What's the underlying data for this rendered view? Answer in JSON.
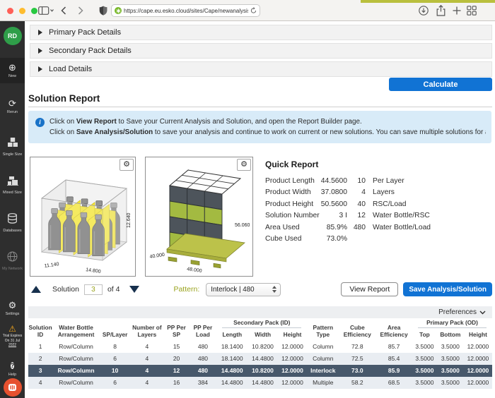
{
  "browser": {
    "url": "https://cape.eu.esko.cloud/sites/Cape/newanalysis"
  },
  "sidebar": {
    "avatar": "RD",
    "items": [
      {
        "label": "New",
        "glyph": "⊕"
      },
      {
        "label": "Rerun",
        "glyph": "⟳"
      },
      {
        "label": "Single Size"
      },
      {
        "label": "Mixed Size"
      },
      {
        "label": "Databases"
      },
      {
        "label": "My Network"
      }
    ],
    "settings": {
      "label": "Settings",
      "glyph": "⚙"
    },
    "trial": {
      "glyph": "⚠",
      "line1": "Trial Expires",
      "line2": "On 31 Jul",
      "line3": "2022"
    },
    "help": {
      "label": "Help",
      "glyph": "?"
    }
  },
  "accordions": [
    {
      "label": "Primary Pack Details"
    },
    {
      "label": "Secondary Pack Details"
    },
    {
      "label": "Load Details"
    }
  ],
  "calculate_label": "Calculate",
  "section_title": "Solution Report",
  "info_box": {
    "line1_prefix": "Click on ",
    "line1_bold": "View Report",
    "line1_suffix": " to Save your Current Analysis and Solution, and open the Report Builder page.",
    "line2_prefix": "Click on ",
    "line2_bold": "Save Analysis/Solution",
    "line2_suffix": " to save your analysis and continue to work on current or new solutions. You can save multiple solutions for any analysis."
  },
  "viewer_case": {
    "dim_left": "11.140",
    "dim_right": "14.800",
    "dim_height": "12.640"
  },
  "viewer_pallet": {
    "dim_left": "40.000",
    "dim_bottom": "48.000",
    "dim_height": "56.060"
  },
  "quick_report": {
    "title": "Quick Report",
    "rows": [
      {
        "label": "Product Length",
        "value": "44.5600",
        "value2": "10",
        "label2": "Per Layer"
      },
      {
        "label": "Product Width",
        "value": "37.0800",
        "value2": "4",
        "label2": "Layers"
      },
      {
        "label": "Product Height",
        "value": "50.5600",
        "value2": "40",
        "label2": "RSC/Load"
      },
      {
        "label": "Solution Number",
        "value": "3 I",
        "value2": "12",
        "label2": "Water Bottle/RSC"
      },
      {
        "label": "Area Used",
        "value": "85.9%",
        "value2": "480",
        "label2": "Water Bottle/Load"
      },
      {
        "label": "Cube Used",
        "value": "73.0%",
        "value2": "",
        "label2": ""
      }
    ]
  },
  "solution_nav": {
    "label": "Solution",
    "current": "3",
    "of_label": "of 4",
    "pattern_label": "Pattern:",
    "pattern_value": "Interlock | 480",
    "view_report_label": "View Report",
    "save_label": "Save Analysis/Solution"
  },
  "table": {
    "preferences_label": "Preferences",
    "headers_main": [
      "Solution\nID",
      "Water Bottle\nArrangement",
      "SP/Layer",
      "Number of\nLayers",
      "PP Per\nSP",
      "PP Per\nLoad"
    ],
    "group_secondary": {
      "label": "Secondary Pack (ID)",
      "sub": [
        "Length",
        "Width",
        "Height"
      ]
    },
    "headers_mid": [
      "Pattern\nType",
      "Cube\nEfficiency",
      "Area\nEfficiency"
    ],
    "group_primary": {
      "label": "Primary Pack (OD)",
      "sub": [
        "Top",
        "Bottom",
        "Height"
      ]
    },
    "selected_row_index": 2,
    "rows": [
      [
        "1",
        "Row/Column",
        "8",
        "4",
        "15",
        "480",
        "18.1400",
        "10.8200",
        "12.0000",
        "Column",
        "72.8",
        "85.7",
        "3.5000",
        "3.5000",
        "12.0000"
      ],
      [
        "2",
        "Row/Column",
        "6",
        "4",
        "20",
        "480",
        "18.1400",
        "14.4800",
        "12.0000",
        "Column",
        "72.5",
        "85.4",
        "3.5000",
        "3.5000",
        "12.0000"
      ],
      [
        "3",
        "Row/Column",
        "10",
        "4",
        "12",
        "480",
        "14.4800",
        "10.8200",
        "12.0000",
        "Interlock",
        "73.0",
        "85.9",
        "3.5000",
        "3.5000",
        "12.0000"
      ],
      [
        "4",
        "Row/Column",
        "6",
        "4",
        "16",
        "384",
        "14.4800",
        "14.4800",
        "12.0000",
        "Multiple",
        "58.2",
        "68.5",
        "3.5000",
        "3.5000",
        "12.0000"
      ]
    ]
  }
}
